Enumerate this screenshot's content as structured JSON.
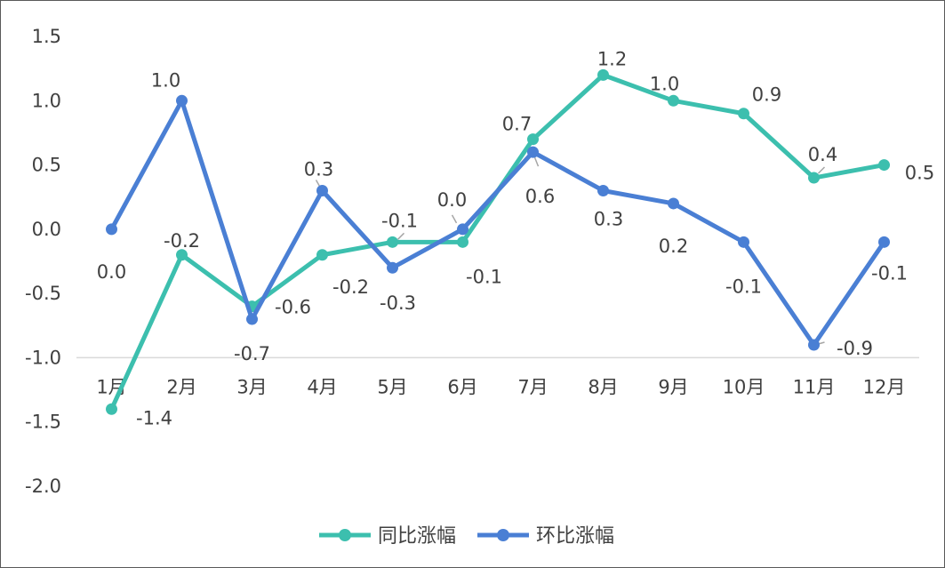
{
  "chart_data": {
    "type": "line",
    "categories": [
      "1月",
      "2月",
      "3月",
      "4月",
      "5月",
      "6月",
      "7月",
      "8月",
      "9月",
      "10月",
      "11月",
      "12月"
    ],
    "y_ticks": [
      "1.5",
      "1.0",
      "0.5",
      "0.0",
      "-0.5",
      "-1.0",
      "-1.5",
      "-2.0"
    ],
    "ylim": [
      -2.0,
      1.5
    ],
    "grid": false,
    "legend_position": "bottom",
    "series": [
      {
        "name": "同比涨幅",
        "color": "#3cbfae",
        "values": [
          -1.4,
          -0.2,
          -0.6,
          -0.2,
          -0.1,
          -0.1,
          0.7,
          1.2,
          1.0,
          0.9,
          0.4,
          0.5
        ],
        "labels": [
          "-1.4",
          "-0.2",
          "-0.6",
          "-0.2",
          "-0.1",
          "-0.1",
          "0.7",
          "1.2",
          "1.0",
          "0.9",
          "0.4",
          "0.5"
        ]
      },
      {
        "name": "环比涨幅",
        "color": "#4a7fd4",
        "values": [
          0.0,
          1.0,
          -0.7,
          0.3,
          -0.3,
          0.0,
          0.6,
          0.3,
          0.2,
          -0.1,
          -0.9,
          -0.1
        ],
        "labels": [
          "0.0",
          "1.0",
          "-0.7",
          "0.3",
          "-0.3",
          "0.0",
          "0.6",
          "0.3",
          "0.2",
          "-0.1",
          "-0.9",
          "-0.1"
        ]
      }
    ]
  }
}
